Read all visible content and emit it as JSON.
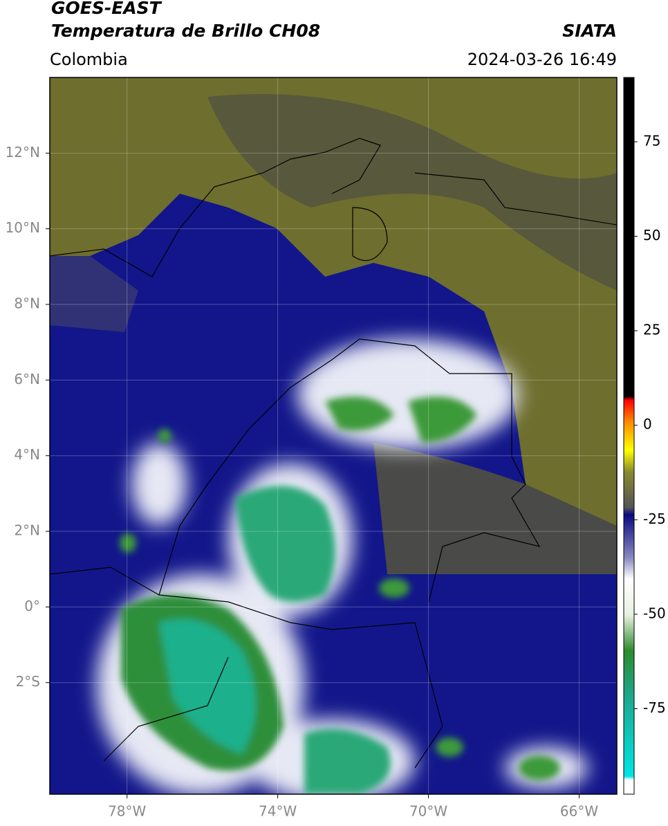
{
  "header": {
    "title": "GOES-EAST",
    "subtitle": "Temperatura de Brillo CH08",
    "source": "SIATA",
    "region": "Colombia",
    "datetime": "2024-03-26 16:49"
  },
  "map": {
    "lonlim": [
      -80.05,
      -65
    ],
    "latlim": [
      -4.95,
      14
    ],
    "lon_ticks": [
      {
        "value": -78,
        "label": "78°W"
      },
      {
        "value": -74,
        "label": "74°W"
      },
      {
        "value": -70,
        "label": "70°W"
      },
      {
        "value": -66,
        "label": "66°W"
      }
    ],
    "lat_ticks": [
      {
        "value": 12,
        "label": "12°N"
      },
      {
        "value": 10,
        "label": "10°N"
      },
      {
        "value": 8,
        "label": "8°N"
      },
      {
        "value": 6,
        "label": "6°N"
      },
      {
        "value": 4,
        "label": "4°N"
      },
      {
        "value": 2,
        "label": "2°N"
      },
      {
        "value": 0,
        "label": "0°"
      },
      {
        "value": -2,
        "label": "2°S"
      }
    ]
  },
  "colorbar": {
    "lim": [
      -97.6,
      92
    ],
    "ticks": [
      75,
      50,
      25,
      0,
      -25,
      -50,
      -75
    ]
  }
}
